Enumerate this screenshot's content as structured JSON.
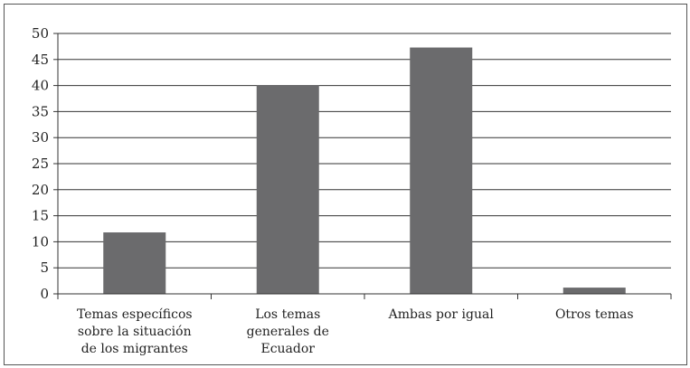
{
  "chart_data": {
    "type": "bar",
    "title": "",
    "xlabel": "",
    "ylabel": "",
    "categories": [
      [
        "Temas específicos",
        "sobre la situación",
        "de los migrantes"
      ],
      [
        "Los temas",
        "generales de",
        "Ecuador"
      ],
      [
        "Ambas por igual"
      ],
      [
        "Otros temas"
      ]
    ],
    "values": [
      11.8,
      40.1,
      47.3,
      1.2
    ],
    "ylim": [
      0,
      50
    ],
    "yticks": [
      "0",
      "5",
      "10",
      "15",
      "20",
      "25",
      "30",
      "35",
      "40",
      "45",
      "50"
    ],
    "grid": true,
    "bar_color": "#6b6b6d",
    "grid_color": "#333333"
  }
}
